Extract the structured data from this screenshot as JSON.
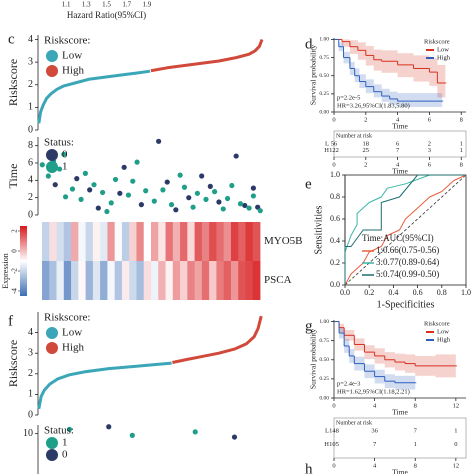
{
  "panel_labels": [
    "c",
    "d",
    "e",
    "f",
    "g",
    "h"
  ],
  "chart_data": [
    {
      "type": "axis",
      "xlabel": "Hazard Ratio(95%CI)",
      "xlim": [
        1.0,
        2.0
      ],
      "xticks": [
        1.1,
        1.3,
        1.5,
        1.7,
        1.9
      ]
    },
    {
      "type": "line",
      "ylabel": "Riskscore",
      "legend_title": "Riskscore:",
      "xlim": [
        0,
        260
      ],
      "ylim": [
        0,
        4.2
      ],
      "yticks": [
        0,
        1,
        2,
        3,
        4
      ],
      "series": [
        {
          "name": "Low",
          "color": "#3aa6b8",
          "x": [
            1,
            3,
            6,
            10,
            15,
            22,
            30,
            45,
            60,
            80,
            100,
            115,
            130
          ],
          "values": [
            0.3,
            0.8,
            1.1,
            1.4,
            1.6,
            1.8,
            1.95,
            2.1,
            2.25,
            2.35,
            2.45,
            2.52,
            2.6
          ]
        },
        {
          "name": "High",
          "color": "#d1493a",
          "x": [
            131,
            150,
            170,
            190,
            210,
            230,
            245,
            252,
            257,
            260
          ],
          "values": [
            2.62,
            2.75,
            2.85,
            2.95,
            3.05,
            3.2,
            3.35,
            3.5,
            3.7,
            4.0
          ]
        }
      ]
    },
    {
      "type": "scatter",
      "ylabel": "Time",
      "legend_title": "Status:",
      "xlim": [
        0,
        260
      ],
      "ylim": [
        0,
        9
      ],
      "yticks": [
        0,
        2,
        4,
        6,
        8
      ],
      "series": [
        {
          "name": "0",
          "color": "#2b3a67",
          "x": [
            20,
            45,
            70,
            95,
            120,
            140,
            150,
            175,
            190,
            210,
            230,
            250,
            255,
            100,
            60,
            160,
            200,
            240
          ],
          "values": [
            3.5,
            4.2,
            0.8,
            2.5,
            1.2,
            8.5,
            3.8,
            2.0,
            4.5,
            1.5,
            6.8,
            3.1,
            0.9,
            5.5,
            2.9,
            0.6,
            3.3,
            1.1
          ]
        },
        {
          "name": "1",
          "color": "#1f9e89",
          "x": [
            5,
            12,
            18,
            25,
            32,
            40,
            50,
            55,
            65,
            75,
            85,
            90,
            105,
            110,
            125,
            135,
            145,
            155,
            165,
            170,
            180,
            185,
            195,
            205,
            215,
            220,
            225,
            235,
            245,
            250,
            258,
            30,
            80,
            115
          ],
          "values": [
            5.8,
            4.5,
            6.2,
            5.3,
            2.1,
            3.0,
            1.8,
            4.8,
            3.5,
            2.6,
            1.4,
            4.1,
            2.3,
            3.9,
            2.8,
            1.6,
            2.9,
            1.2,
            4.6,
            3.2,
            0.9,
            2.5,
            1.8,
            2.7,
            0.7,
            1.9,
            3.4,
            1.3,
            0.8,
            2.2,
            0.5,
            7.0,
            0.4,
            6.1
          ]
        }
      ]
    },
    {
      "type": "heatmap",
      "rows": [
        "MYO5B",
        "PSCA"
      ],
      "colorbar_label": "Expression",
      "zlim": [
        -4.5,
        2.5
      ],
      "zticks": [
        2,
        0,
        -2,
        -4
      ],
      "colormap": [
        "#3d6fb6",
        "#ffffff",
        "#d7191c"
      ],
      "values": [
        [
          -2.1,
          -0.5,
          -1.8,
          -2.4,
          0.3,
          -1.2,
          -2.0,
          -0.8,
          -1.5,
          0.6,
          -1.1,
          -2.2,
          -0.3,
          0.8,
          -1.0,
          0.4,
          -0.6,
          1.1,
          0.2,
          1.3,
          -0.4,
          1.5,
          0.9,
          1.7,
          1.2,
          0.7,
          1.9,
          1.4,
          2.0,
          1.6
        ],
        [
          -3.2,
          -2.5,
          -1.4,
          -3.5,
          -2.0,
          -0.9,
          -2.8,
          -1.6,
          -3.0,
          -1.2,
          -2.4,
          -0.7,
          -1.9,
          -2.6,
          -0.5,
          -1.3,
          0.2,
          -0.8,
          0.5,
          -0.3,
          0.9,
          0.4,
          1.2,
          -0.2,
          1.0,
          1.4,
          0.6,
          1.6,
          1.8,
          2.1
        ]
      ]
    },
    {
      "type": "km",
      "ylabel": "Survival probability",
      "xlabel": "Time",
      "legend_title": "Riskscore",
      "xlim": [
        0,
        8.3
      ],
      "xticks": [
        0,
        2,
        4,
        6,
        8
      ],
      "ylim": [
        0,
        1.02
      ],
      "yticks": [
        {
          "value": 0,
          "label": "0.00"
        },
        0.25,
        {
          "value": 0.5,
          "label": "0.50"
        },
        0.75,
        {
          "value": 1,
          "label": "1.00"
        }
      ],
      "annotations": [
        "p=2.2e-5",
        "HR=3.26,95%CI(1.83,5.80)"
      ],
      "series": [
        {
          "name": "Low",
          "color": "#d7301f",
          "x": [
            0,
            0.5,
            1,
            1.5,
            2,
            2.5,
            3,
            4,
            5,
            6,
            6.5,
            7
          ],
          "values": [
            1,
            0.97,
            0.9,
            0.85,
            0.78,
            0.72,
            0.7,
            0.65,
            0.6,
            0.55,
            0.4,
            0.4
          ],
          "lower": [
            1,
            0.9,
            0.8,
            0.72,
            0.64,
            0.57,
            0.54,
            0.48,
            0.42,
            0.36,
            0.2,
            0.2
          ],
          "upper": [
            1,
            1,
            0.99,
            0.96,
            0.91,
            0.86,
            0.85,
            0.81,
            0.78,
            0.74,
            0.65,
            0.65
          ]
        },
        {
          "name": "High",
          "color": "#2c5fbf",
          "x": [
            0,
            0.3,
            0.6,
            1,
            1.3,
            1.6,
            2,
            2.5,
            3,
            3.5,
            4,
            5,
            6,
            6.8
          ],
          "values": [
            1,
            0.9,
            0.75,
            0.6,
            0.5,
            0.42,
            0.35,
            0.28,
            0.22,
            0.18,
            0.15,
            0.15,
            0.15,
            0.15
          ],
          "lower": [
            1,
            0.84,
            0.67,
            0.51,
            0.41,
            0.33,
            0.26,
            0.2,
            0.14,
            0.1,
            0.07,
            0.07,
            0.07,
            0.07
          ],
          "upper": [
            1,
            0.96,
            0.83,
            0.69,
            0.6,
            0.52,
            0.45,
            0.38,
            0.32,
            0.28,
            0.26,
            0.26,
            0.26,
            0.26
          ]
        }
      ],
      "risk_table": {
        "title": "Number at risk",
        "rows": [
          {
            "name": "L",
            "values": [
              56,
              18,
              6,
              2,
              1
            ]
          },
          {
            "name": "H",
            "values": [
              122,
              25,
              7,
              3,
              1
            ]
          }
        ]
      }
    },
    {
      "type": "roc",
      "xlabel": "1-Specificities",
      "ylabel": "Sensitivities",
      "legend_title": "Time:AUC(95%CI)",
      "xlim": [
        0,
        1
      ],
      "ylim": [
        0,
        1
      ],
      "xticks": [
        {
          "value": 0,
          "label": "0.0"
        },
        0.2,
        0.4,
        0.6,
        0.8,
        {
          "value": 1,
          "label": "1.0"
        }
      ],
      "yticks": [
        {
          "value": 0,
          "label": "0.0"
        },
        0.2,
        0.4,
        0.6,
        0.8,
        {
          "value": 1,
          "label": "1.0"
        }
      ],
      "series": [
        {
          "name": "1:0.66(0.75-0.56)",
          "color": "#e8603c",
          "x": [
            0,
            0.05,
            0.1,
            0.15,
            0.2,
            0.3,
            0.35,
            0.45,
            0.5,
            0.6,
            0.7,
            0.8,
            0.9,
            1
          ],
          "values": [
            0,
            0.1,
            0.15,
            0.2,
            0.3,
            0.35,
            0.45,
            0.5,
            0.6,
            0.7,
            0.8,
            0.85,
            0.95,
            1
          ]
        },
        {
          "name": "3:0.77(0.89-0.64)",
          "color": "#3ab5a8",
          "x": [
            0,
            0,
            0.05,
            0.1,
            0.1,
            0.2,
            0.3,
            0.35,
            0.5,
            0.7,
            1
          ],
          "values": [
            0,
            0.3,
            0.45,
            0.55,
            0.65,
            0.75,
            0.8,
            0.88,
            0.92,
            1,
            1
          ]
        },
        {
          "name": "5:0.74(0.99-0.50)",
          "color": "#1c6e6e",
          "x": [
            0,
            0,
            0.05,
            0.15,
            0.3,
            0.3,
            0.45,
            0.6,
            1
          ],
          "values": [
            0,
            0.35,
            0.35,
            0.5,
            0.5,
            0.75,
            0.8,
            1,
            1
          ]
        }
      ]
    },
    {
      "type": "line",
      "ylabel": "Riskscore",
      "legend_title": "Riskscore:",
      "xlim": [
        0,
        285
      ],
      "ylim": [
        0,
        5
      ],
      "yticks": [
        0,
        1,
        2,
        3,
        4
      ],
      "series": [
        {
          "name": "Low",
          "color": "#3aa6b8",
          "x": [
            1,
            4,
            8,
            15,
            25,
            40,
            60,
            90,
            120,
            150,
            170
          ],
          "values": [
            0.3,
            0.9,
            1.2,
            1.5,
            1.75,
            1.95,
            2.1,
            2.25,
            2.35,
            2.45,
            2.52
          ]
        },
        {
          "name": "High",
          "color": "#d1493a",
          "x": [
            171,
            190,
            210,
            230,
            250,
            265,
            275,
            280,
            284
          ],
          "values": [
            2.55,
            2.7,
            2.85,
            3.0,
            3.2,
            3.45,
            3.8,
            4.2,
            4.8
          ]
        }
      ]
    },
    {
      "type": "scatter",
      "legend_title": "Status:",
      "xlim": [
        0,
        285
      ],
      "ylim": [
        0,
        11
      ],
      "yticks": [
        10
      ],
      "series": [
        {
          "name": "1",
          "color": "#1f9e89",
          "x": [
            40,
            120,
            200
          ],
          "values": [
            10.5,
            9.8,
            10.2
          ]
        },
        {
          "name": "0",
          "color": "#2b3a67",
          "x": [
            90,
            250
          ],
          "values": [
            10.8,
            9.6
          ]
        }
      ]
    },
    {
      "type": "km",
      "ylabel": "Survival probability",
      "xlabel": "Time",
      "legend_title": "Riskscore",
      "xlim": [
        0,
        13
      ],
      "xticks": [
        0,
        4,
        8,
        12
      ],
      "ylim": [
        0,
        1.02
      ],
      "yticks": [
        {
          "value": 0,
          "label": "0.00"
        },
        0.25,
        {
          "value": 0.5,
          "label": "0.50"
        },
        0.75,
        {
          "value": 1,
          "label": "1.00"
        }
      ],
      "annotations": [
        "p=2.4e-3",
        "HR=1.62,95%CI(1.18,2.21)"
      ],
      "series": [
        {
          "name": "Low",
          "color": "#d7301f",
          "x": [
            0,
            0.5,
            1,
            2,
            3,
            4,
            5,
            6,
            7,
            8,
            10,
            12
          ],
          "values": [
            1,
            0.92,
            0.82,
            0.7,
            0.6,
            0.55,
            0.5,
            0.47,
            0.45,
            0.42,
            0.42,
            0.42
          ],
          "lower": [
            1,
            0.86,
            0.75,
            0.62,
            0.51,
            0.45,
            0.4,
            0.36,
            0.33,
            0.29,
            0.27,
            0.2
          ],
          "upper": [
            1,
            0.97,
            0.89,
            0.78,
            0.69,
            0.65,
            0.6,
            0.58,
            0.57,
            0.55,
            0.57,
            0.64
          ]
        },
        {
          "name": "High",
          "color": "#2c5fbf",
          "x": [
            0,
            0.5,
            1,
            1.5,
            2,
            3,
            4,
            5,
            6,
            8
          ],
          "values": [
            1,
            0.85,
            0.68,
            0.55,
            0.45,
            0.35,
            0.28,
            0.22,
            0.2,
            0.2
          ],
          "lower": [
            1,
            0.78,
            0.59,
            0.46,
            0.36,
            0.26,
            0.19,
            0.13,
            0.11,
            0.11
          ],
          "upper": [
            1,
            0.91,
            0.77,
            0.64,
            0.54,
            0.44,
            0.37,
            0.31,
            0.29,
            0.29
          ]
        }
      ],
      "risk_table": {
        "title": "Number at risk",
        "rows": [
          {
            "name": "L",
            "values": [
              148,
              36,
              7,
              1
            ]
          },
          {
            "name": "H",
            "values": [
              105,
              7,
              1,
              0
            ]
          }
        ]
      }
    }
  ]
}
